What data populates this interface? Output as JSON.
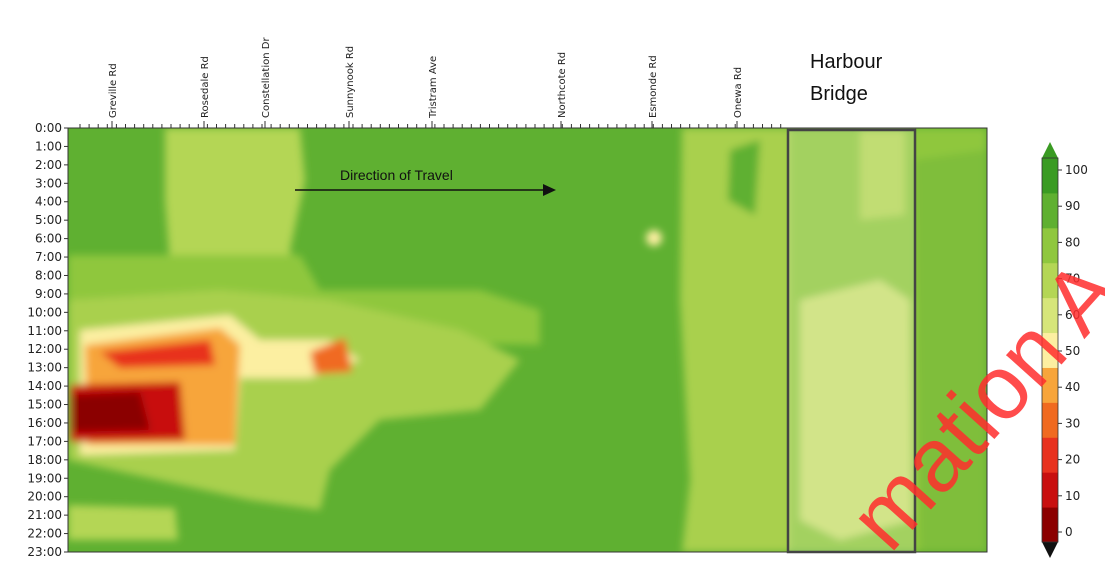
{
  "chart_data": {
    "type": "heatmap",
    "x_axis_roads": [
      "Greville Rd",
      "Rosedale Rd",
      "Constellation Dr",
      "Sunnynook Rd",
      "Tristram Ave",
      "Northcote Rd",
      "Esmonde Rd",
      "Onewa Rd"
    ],
    "y_axis_times": [
      "0:00",
      "1:00",
      "2:00",
      "3:00",
      "4:00",
      "5:00",
      "6:00",
      "7:00",
      "8:00",
      "9:00",
      "10:00",
      "11:00",
      "12:00",
      "13:00",
      "14:00",
      "15:00",
      "16:00",
      "17:00",
      "18:00",
      "19:00",
      "20:00",
      "21:00",
      "22:00",
      "23:00"
    ],
    "colorbar_ticks": [
      0,
      10,
      20,
      30,
      40,
      50,
      60,
      70,
      80,
      90,
      100
    ],
    "colorbar_range": [
      0,
      100
    ],
    "colorbar_extends": "both",
    "colormap": [
      "#8b0000",
      "#c80f0f",
      "#e8321e",
      "#f06a20",
      "#f7a53b",
      "#fcefa1",
      "#d6e57a",
      "#b4d655",
      "#8fc73e",
      "#5fb031",
      "#3a9b23"
    ],
    "annotations": {
      "bridge_label": "Harbour Bridge",
      "direction_label": "Direction of Travel"
    },
    "watermark_text": "mation A",
    "speed_zones": [
      {
        "zone": "mainline_free_flow",
        "value": 92
      },
      {
        "zone": "rosedale_overnight",
        "value": 75
      },
      {
        "zone": "greville_rosedale_midday",
        "value": 45
      },
      {
        "zone": "greville_rosedale_afternoon_peak",
        "value": 12
      },
      {
        "zone": "sunnynook_midday",
        "value": 30
      },
      {
        "zone": "onewa_section",
        "value": 78
      },
      {
        "zone": "harbour_bridge",
        "value": 72
      }
    ]
  }
}
